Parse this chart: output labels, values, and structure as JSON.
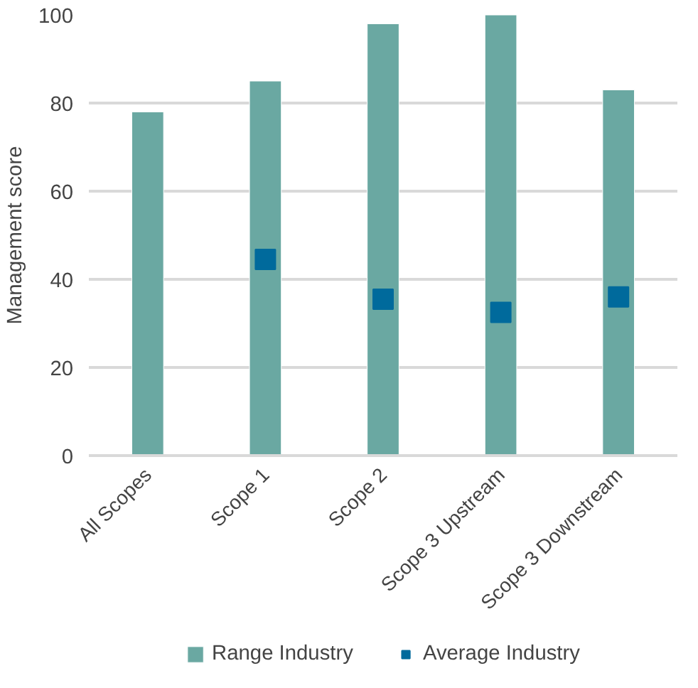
{
  "chart_data": {
    "type": "bar",
    "ylabel": "Management score",
    "categories": [
      "All Scopes",
      "Scope 1",
      "Scope 2",
      "Scope 3 Upstream",
      "Scope 3 Downstream"
    ],
    "series": [
      {
        "name": "Range Industry",
        "color": "#6aa8a2",
        "values": [
          78,
          85,
          98,
          100,
          83
        ]
      },
      {
        "name": "Average Industry",
        "color": "#006a9c",
        "type": "scatter",
        "marker": "square",
        "values": [
          null,
          44.5,
          35.5,
          32.5,
          36
        ]
      }
    ],
    "ylim": [
      0,
      100
    ],
    "yticks": [
      0,
      20,
      40,
      60,
      80,
      100
    ],
    "grid": "y",
    "legend": "bottom"
  }
}
